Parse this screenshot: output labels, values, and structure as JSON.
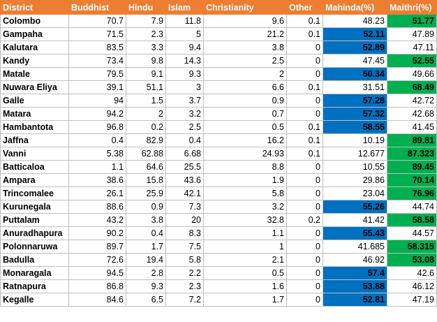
{
  "colors": {
    "header_bg": "#ed7d31",
    "header_text": "#ffffff",
    "winner_mahinda": "#0070c0",
    "winner_maithri": "#00b050"
  },
  "headers": [
    "District",
    "Buddhist",
    "Hindu",
    "Islam",
    "Christianity",
    "Other",
    "Mahinda(%)",
    "Maithri(%)"
  ],
  "rows": [
    {
      "district": "Colombo",
      "buddhist": "70.7",
      "hindu": "7.9",
      "islam": "11.8",
      "christianity": "9.6",
      "other": "0.1",
      "mahinda": "48.23",
      "maithri": "51.77",
      "winner": "maithri"
    },
    {
      "district": "Gampaha",
      "buddhist": "71.5",
      "hindu": "2.3",
      "islam": "5",
      "christianity": "21.2",
      "other": "0.1",
      "mahinda": "52.11",
      "maithri": "47.89",
      "winner": "mahinda"
    },
    {
      "district": "Kalutara",
      "buddhist": "83.5",
      "hindu": "3.3",
      "islam": "9.4",
      "christianity": "3.8",
      "other": "0",
      "mahinda": "52.89",
      "maithri": "47.11",
      "winner": "mahinda"
    },
    {
      "district": "Kandy",
      "buddhist": "73.4",
      "hindu": "9.8",
      "islam": "14.3",
      "christianity": "2.5",
      "other": "0",
      "mahinda": "47.45",
      "maithri": "52.55",
      "winner": "maithri"
    },
    {
      "district": "Matale",
      "buddhist": "79.5",
      "hindu": "9.1",
      "islam": "9.3",
      "christianity": "2",
      "other": "0",
      "mahinda": "50.34",
      "maithri": "49.66",
      "winner": "mahinda"
    },
    {
      "district": "Nuwara Eliya",
      "buddhist": "39.1",
      "hindu": "51.1",
      "islam": "3",
      "christianity": "6.6",
      "other": "0.1",
      "mahinda": "31.51",
      "maithri": "68.49",
      "winner": "maithri"
    },
    {
      "district": "Galle",
      "buddhist": "94",
      "hindu": "1.5",
      "islam": "3.7",
      "christianity": "0.9",
      "other": "0",
      "mahinda": "57.28",
      "maithri": "42.72",
      "winner": "mahinda"
    },
    {
      "district": "Matara",
      "buddhist": "94.2",
      "hindu": "2",
      "islam": "3.2",
      "christianity": "0.7",
      "other": "0",
      "mahinda": "57.32",
      "maithri": "42.68",
      "winner": "mahinda"
    },
    {
      "district": "Hambantota",
      "buddhist": "96.8",
      "hindu": "0.2",
      "islam": "2.5",
      "christianity": "0.5",
      "other": "0.1",
      "mahinda": "58.55",
      "maithri": "41.45",
      "winner": "mahinda"
    },
    {
      "district": "Jaffna",
      "buddhist": "0.4",
      "hindu": "82.9",
      "islam": "0.4",
      "christianity": "16.2",
      "other": "0.1",
      "mahinda": "10.19",
      "maithri": "89.81",
      "winner": "maithri"
    },
    {
      "district": "Vanni",
      "buddhist": "5.38",
      "hindu": "62.88",
      "islam": "6.68",
      "christianity": "24.93",
      "other": "0.1",
      "mahinda": "12.677",
      "maithri": "87.323",
      "winner": "maithri"
    },
    {
      "district": "Batticaloa",
      "buddhist": "1.1",
      "hindu": "64.6",
      "islam": "25.5",
      "christianity": "8.8",
      "other": "0",
      "mahinda": "10.55",
      "maithri": "89.45",
      "winner": "maithri"
    },
    {
      "district": "Ampara",
      "buddhist": "38.6",
      "hindu": "15.8",
      "islam": "43.6",
      "christianity": "1.9",
      "other": "0",
      "mahinda": "29.86",
      "maithri": "70.14",
      "winner": "maithri"
    },
    {
      "district": "Trincomalee",
      "buddhist": "26.1",
      "hindu": "25.9",
      "islam": "42.1",
      "christianity": "5.8",
      "other": "0",
      "mahinda": "23.04",
      "maithri": "76.96",
      "winner": "maithri"
    },
    {
      "district": "Kurunegala",
      "buddhist": "88.6",
      "hindu": "0.9",
      "islam": "7.3",
      "christianity": "3.2",
      "other": "0",
      "mahinda": "55.26",
      "maithri": "44.74",
      "winner": "mahinda"
    },
    {
      "district": "Puttalam",
      "buddhist": "43.2",
      "hindu": "3.8",
      "islam": "20",
      "christianity": "32.8",
      "other": "0.2",
      "mahinda": "41.42",
      "maithri": "58.58",
      "winner": "maithri"
    },
    {
      "district": "Anuradhapura",
      "buddhist": "90.2",
      "hindu": "0.4",
      "islam": "8.3",
      "christianity": "1.1",
      "other": "0",
      "mahinda": "55.43",
      "maithri": "44.57",
      "winner": "mahinda"
    },
    {
      "district": "Polonnaruwa",
      "buddhist": "89.7",
      "hindu": "1.7",
      "islam": "7.5",
      "christianity": "1",
      "other": "0",
      "mahinda": "41.685",
      "maithri": "58.315",
      "winner": "maithri"
    },
    {
      "district": "Badulla",
      "buddhist": "72.6",
      "hindu": "19.4",
      "islam": "5.8",
      "christianity": "2.1",
      "other": "0",
      "mahinda": "46.92",
      "maithri": "53.08",
      "winner": "maithri"
    },
    {
      "district": "Monaragala",
      "buddhist": "94.5",
      "hindu": "2.8",
      "islam": "2.2",
      "christianity": "0.5",
      "other": "0",
      "mahinda": "57.4",
      "maithri": "42.6",
      "winner": "mahinda"
    },
    {
      "district": "Ratnapura",
      "buddhist": "86.8",
      "hindu": "9.3",
      "islam": "2.3",
      "christianity": "1.6",
      "other": "0",
      "mahinda": "53.88",
      "maithri": "46.12",
      "winner": "mahinda"
    },
    {
      "district": "Kegalle",
      "buddhist": "84.6",
      "hindu": "6.5",
      "islam": "7.2",
      "christianity": "1.7",
      "other": "0",
      "mahinda": "52.81",
      "maithri": "47.19",
      "winner": "mahinda"
    }
  ]
}
